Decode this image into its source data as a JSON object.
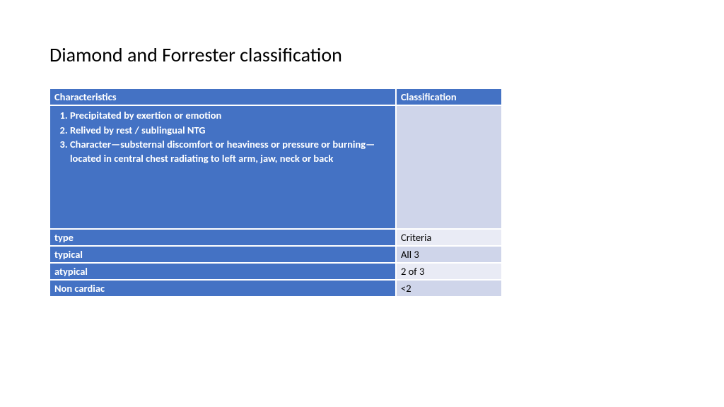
{
  "title": "Diamond and Forrester classification",
  "table": {
    "header": {
      "col1": "Characteristics",
      "col2": "Classification"
    },
    "characteristics": {
      "item1": "Precipitated by exertion or emotion",
      "item2": "Relived by rest / sublingual NTG",
      "item3": "Character—substernal discomfort or heaviness or pressure or burning—located in central chest radiating to left arm, jaw, neck or back"
    },
    "rows": [
      {
        "left": "type",
        "right": "Criteria"
      },
      {
        "left": "typical",
        "right": "All 3"
      },
      {
        "left": "atypical",
        "right": "2 of 3"
      },
      {
        "left": "Non cardiac",
        "right": "<2"
      }
    ]
  },
  "colors": {
    "header_bg": "#4472c4",
    "header_fg": "#ffffff",
    "alt1_bg": "#e9ebf5",
    "alt2_bg": "#cfd5ea",
    "text": "#000000"
  }
}
